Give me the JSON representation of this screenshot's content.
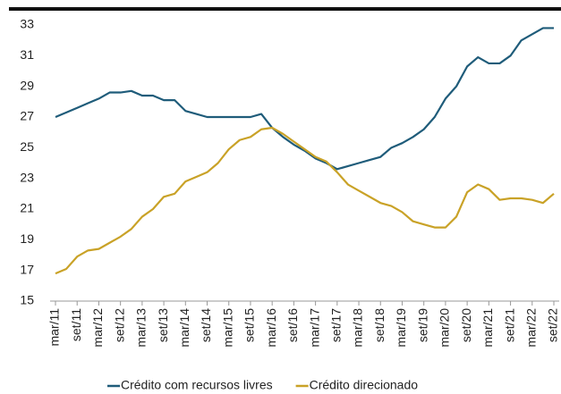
{
  "chart_data": {
    "type": "line",
    "categories": [
      "mar/11",
      null,
      "set/11",
      null,
      "mar/12",
      null,
      "set/12",
      null,
      "mar/13",
      null,
      "set/13",
      null,
      "mar/14",
      null,
      "set/14",
      null,
      "mar/15",
      null,
      "set/15",
      null,
      "mar/16",
      null,
      "set/16",
      null,
      "mar/17",
      null,
      "set/17",
      null,
      "mar/18",
      null,
      "set/18",
      null,
      "mar/19",
      null,
      "set/19",
      null,
      "mar/20",
      null,
      "set/20",
      null,
      "mar/21",
      null,
      "set/21",
      null,
      "mar/22",
      null,
      "set/22"
    ],
    "series": [
      {
        "name": "Crédito com recursos livres",
        "color": "#1f5c7a",
        "values": [
          27.0,
          27.3,
          27.6,
          27.9,
          28.2,
          28.6,
          28.6,
          28.7,
          28.4,
          28.4,
          28.1,
          28.1,
          27.4,
          27.2,
          27.0,
          27.0,
          27.0,
          27.0,
          27.0,
          27.2,
          26.3,
          25.7,
          25.2,
          24.8,
          24.3,
          24.0,
          23.6,
          23.8,
          24.0,
          24.2,
          24.4,
          25.0,
          25.3,
          25.7,
          26.2,
          27.0,
          28.2,
          29.0,
          30.3,
          30.9,
          30.5,
          30.5,
          31.0,
          32.0,
          32.4,
          32.8,
          32.8
        ]
      },
      {
        "name": "Crédito direcionado",
        "color": "#c9a227",
        "values": [
          16.8,
          17.1,
          17.9,
          18.3,
          18.4,
          18.8,
          19.2,
          19.7,
          20.5,
          21.0,
          21.8,
          22.0,
          22.8,
          23.1,
          23.4,
          24.0,
          24.9,
          25.5,
          25.7,
          26.2,
          26.3,
          25.9,
          25.4,
          24.9,
          24.4,
          24.1,
          23.4,
          22.6,
          22.2,
          21.8,
          21.4,
          21.2,
          20.8,
          20.2,
          20.0,
          19.8,
          19.8,
          20.5,
          22.1,
          22.6,
          22.3,
          21.6,
          21.7,
          21.7,
          21.6,
          21.4,
          22.0
        ]
      }
    ],
    "ylim": [
      15,
      33
    ],
    "yticks": [
      15,
      17,
      19,
      21,
      23,
      25,
      27,
      29,
      31,
      33
    ],
    "grid": false,
    "legend": "bottom"
  }
}
